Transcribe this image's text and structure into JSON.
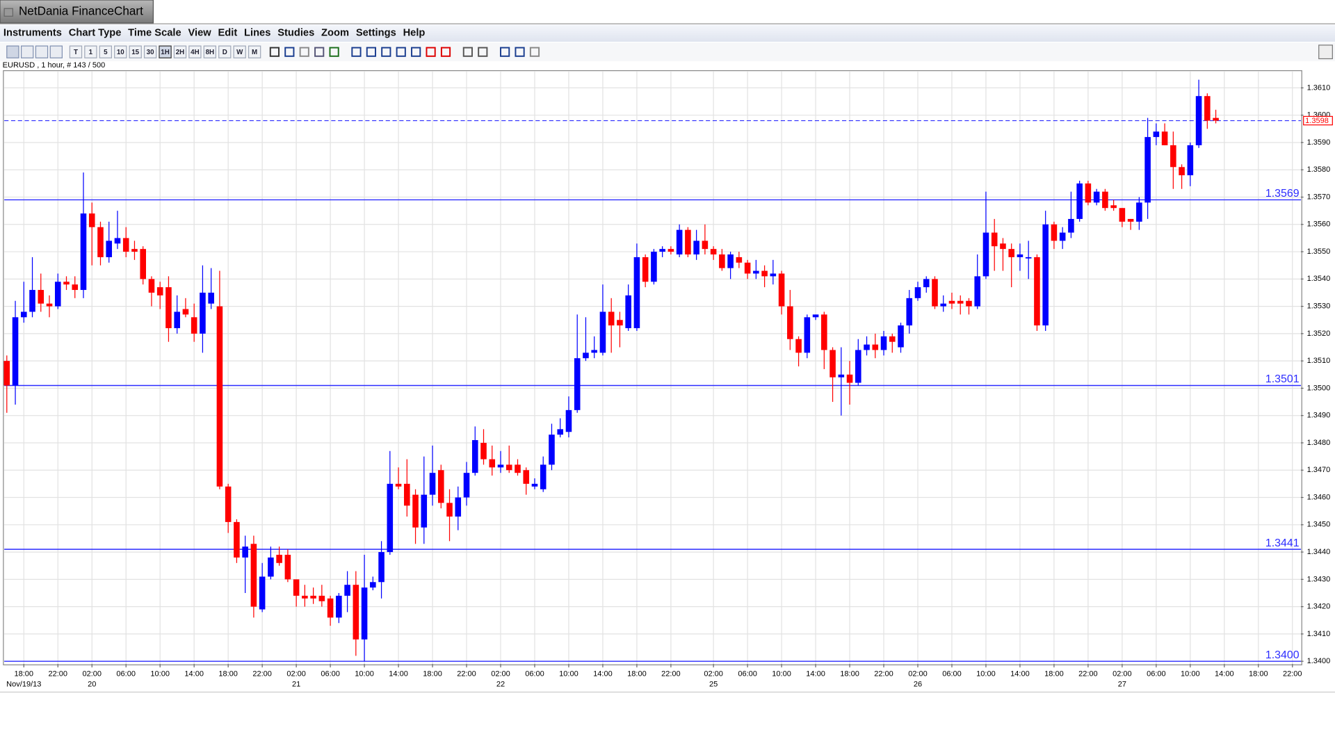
{
  "app_title": "NetDania FinanceChart",
  "menu": [
    "Instruments",
    "Chart Type",
    "Time Scale",
    "View",
    "Edit",
    "Lines",
    "Studies",
    "Zoom",
    "Settings",
    "Help"
  ],
  "toolbar": [
    "T",
    "1",
    "5",
    "10",
    "15",
    "30",
    "1H",
    "2H",
    "4H",
    "8H",
    "D",
    "W",
    "M"
  ],
  "chart_data": {
    "type": "candlestick",
    "subtitle": "EURUSD , 1 hour, # 143 / 500",
    "up_color": "#0000ff",
    "down_color": "#ff0000",
    "level_color": "#2b2bff",
    "grid": true,
    "xlim": [
      -0.3,
      152
    ],
    "ylim": [
      1.3399,
      1.3616
    ],
    "yticks": [
      {
        "value": 1.34,
        "label": "1.3400"
      },
      {
        "value": 1.341,
        "label": "1.3410"
      },
      {
        "value": 1.342,
        "label": "1.3420"
      },
      {
        "value": 1.343,
        "label": "1.3430"
      },
      {
        "value": 1.344,
        "label": "1.3440"
      },
      {
        "value": 1.345,
        "label": "1.3450"
      },
      {
        "value": 1.346,
        "label": "1.3460"
      },
      {
        "value": 1.347,
        "label": "1.3470"
      },
      {
        "value": 1.348,
        "label": "1.3480"
      },
      {
        "value": 1.349,
        "label": "1.3490"
      },
      {
        "value": 1.35,
        "label": "1.3500"
      },
      {
        "value": 1.351,
        "label": "1.3510"
      },
      {
        "value": 1.352,
        "label": "1.3520"
      },
      {
        "value": 1.353,
        "label": "1.3530"
      },
      {
        "value": 1.354,
        "label": "1.3540"
      },
      {
        "value": 1.355,
        "label": "1.3550"
      },
      {
        "value": 1.356,
        "label": "1.3560"
      },
      {
        "value": 1.357,
        "label": "1.3570"
      },
      {
        "value": 1.358,
        "label": "1.3580"
      },
      {
        "value": 1.359,
        "label": "1.3590"
      },
      {
        "value": 1.36,
        "label": "1.3600"
      },
      {
        "value": 1.361,
        "label": "1.3610"
      }
    ],
    "xticks": [
      {
        "value": 2,
        "label": "18:00"
      },
      {
        "value": 6,
        "label": "22:00"
      },
      {
        "value": 10,
        "label": "02:00"
      },
      {
        "value": 14,
        "label": "06:00"
      },
      {
        "value": 18,
        "label": "10:00"
      },
      {
        "value": 22,
        "label": "14:00"
      },
      {
        "value": 26,
        "label": "18:00"
      },
      {
        "value": 30,
        "label": "22:00"
      },
      {
        "value": 34,
        "label": "02:00"
      },
      {
        "value": 38,
        "label": "06:00"
      },
      {
        "value": 42,
        "label": "10:00"
      },
      {
        "value": 46,
        "label": "14:00"
      },
      {
        "value": 50,
        "label": "18:00"
      },
      {
        "value": 54,
        "label": "22:00"
      },
      {
        "value": 58,
        "label": "02:00"
      },
      {
        "value": 62,
        "label": "06:00"
      },
      {
        "value": 66,
        "label": "10:00"
      },
      {
        "value": 70,
        "label": "14:00"
      },
      {
        "value": 74,
        "label": "18:00"
      },
      {
        "value": 78,
        "label": "22:00"
      },
      {
        "value": 83,
        "label": "02:00"
      },
      {
        "value": 87,
        "label": "06:00"
      },
      {
        "value": 91,
        "label": "10:00"
      },
      {
        "value": 95,
        "label": "14:00"
      },
      {
        "value": 99,
        "label": "18:00"
      },
      {
        "value": 103,
        "label": "22:00"
      },
      {
        "value": 107,
        "label": "02:00"
      },
      {
        "value": 111,
        "label": "06:00"
      },
      {
        "value": 115,
        "label": "10:00"
      },
      {
        "value": 119,
        "label": "14:00"
      },
      {
        "value": 123,
        "label": "18:00"
      },
      {
        "value": 127,
        "label": "22:00"
      },
      {
        "value": 131,
        "label": "02:00"
      },
      {
        "value": 135,
        "label": "06:00"
      },
      {
        "value": 139,
        "label": "10:00"
      },
      {
        "value": 143,
        "label": "14:00"
      },
      {
        "value": 147,
        "label": "18:00"
      },
      {
        "value": 151,
        "label": "22:00"
      }
    ],
    "date_ticks": [
      {
        "value": 2,
        "label": "Nov/19/13"
      },
      {
        "value": 10,
        "label": "20"
      },
      {
        "value": 34,
        "label": "21"
      },
      {
        "value": 58,
        "label": "22"
      },
      {
        "value": 83,
        "label": "25"
      },
      {
        "value": 107,
        "label": "26"
      },
      {
        "value": 131,
        "label": "27"
      }
    ],
    "levels": [
      1.3569,
      1.3501,
      1.3441,
      {
        "value": 1.34,
        "label": "1.3400"
      }
    ],
    "last_price": 1.3598,
    "ohlc": [
      [
        1.351,
        1.3512,
        1.3491,
        1.3501
      ],
      [
        1.3501,
        1.3532,
        1.3494,
        1.3526
      ],
      [
        1.3526,
        1.3539,
        1.3524,
        1.3528
      ],
      [
        1.3528,
        1.3548,
        1.3526,
        1.3536
      ],
      [
        1.3536,
        1.3542,
        1.3528,
        1.3531
      ],
      [
        1.3531,
        1.3534,
        1.3526,
        1.353
      ],
      [
        1.353,
        1.3542,
        1.3529,
        1.3539
      ],
      [
        1.3539,
        1.3541,
        1.3536,
        1.3538
      ],
      [
        1.3538,
        1.3541,
        1.3533,
        1.3536
      ],
      [
        1.3536,
        1.3579,
        1.3533,
        1.3564
      ],
      [
        1.3564,
        1.3568,
        1.3545,
        1.3559
      ],
      [
        1.3559,
        1.3561,
        1.3545,
        1.3548
      ],
      [
        1.3548,
        1.3561,
        1.3546,
        1.3554
      ],
      [
        1.3553,
        1.3565,
        1.3551,
        1.3555
      ],
      [
        1.3555,
        1.3559,
        1.3548,
        1.355
      ],
      [
        1.3551,
        1.3554,
        1.3547,
        1.355
      ],
      [
        1.3551,
        1.3552,
        1.3538,
        1.354
      ],
      [
        1.354,
        1.3541,
        1.353,
        1.3535
      ],
      [
        1.3537,
        1.3539,
        1.3529,
        1.3534
      ],
      [
        1.3537,
        1.3541,
        1.3517,
        1.3522
      ],
      [
        1.3522,
        1.3534,
        1.352,
        1.3528
      ],
      [
        1.3529,
        1.3533,
        1.3526,
        1.3527
      ],
      [
        1.3526,
        1.3531,
        1.3517,
        1.352
      ],
      [
        1.352,
        1.3545,
        1.3513,
        1.3535
      ],
      [
        1.3531,
        1.3544,
        1.3529,
        1.3535
      ],
      [
        1.353,
        1.3543,
        1.3463,
        1.3464
      ],
      [
        1.3464,
        1.3465,
        1.3447,
        1.3451
      ],
      [
        1.3451,
        1.3452,
        1.3436,
        1.3438
      ],
      [
        1.3438,
        1.3446,
        1.3425,
        1.3442
      ],
      [
        1.3443,
        1.3446,
        1.3416,
        1.342
      ],
      [
        1.3419,
        1.3436,
        1.3418,
        1.3431
      ],
      [
        1.3431,
        1.3442,
        1.343,
        1.3438
      ],
      [
        1.3439,
        1.3442,
        1.3435,
        1.3436
      ],
      [
        1.3439,
        1.3441,
        1.3429,
        1.343
      ],
      [
        1.343,
        1.343,
        1.342,
        1.3424
      ],
      [
        1.3424,
        1.3428,
        1.342,
        1.3423
      ],
      [
        1.3424,
        1.3427,
        1.3421,
        1.3423
      ],
      [
        1.3424,
        1.3428,
        1.342,
        1.3422
      ],
      [
        1.3423,
        1.3424,
        1.3413,
        1.3416
      ],
      [
        1.3416,
        1.3425,
        1.3414,
        1.3424
      ],
      [
        1.3424,
        1.3433,
        1.3418,
        1.3428
      ],
      [
        1.3428,
        1.3433,
        1.3402,
        1.3408
      ],
      [
        1.3408,
        1.3439,
        1.34,
        1.3427
      ],
      [
        1.3427,
        1.3431,
        1.3426,
        1.3429
      ],
      [
        1.3429,
        1.3444,
        1.3423,
        1.344
      ],
      [
        1.344,
        1.3477,
        1.3439,
        1.3465
      ],
      [
        1.3465,
        1.3471,
        1.3463,
        1.3464
      ],
      [
        1.3465,
        1.3474,
        1.3453,
        1.3457
      ],
      [
        1.3461,
        1.3463,
        1.3443,
        1.3449
      ],
      [
        1.3449,
        1.3475,
        1.3443,
        1.3461
      ],
      [
        1.3461,
        1.3479,
        1.3457,
        1.3469
      ],
      [
        1.347,
        1.3472,
        1.3456,
        1.3458
      ],
      [
        1.3458,
        1.3463,
        1.3444,
        1.3453
      ],
      [
        1.3453,
        1.3464,
        1.3448,
        1.346
      ],
      [
        1.346,
        1.3473,
        1.3457,
        1.3469
      ],
      [
        1.3469,
        1.3486,
        1.3468,
        1.3481
      ],
      [
        1.348,
        1.3485,
        1.3472,
        1.3474
      ],
      [
        1.3474,
        1.3479,
        1.3468,
        1.3471
      ],
      [
        1.3471,
        1.3477,
        1.3469,
        1.3472
      ],
      [
        1.3472,
        1.3479,
        1.3469,
        1.347
      ],
      [
        1.3472,
        1.3474,
        1.3468,
        1.3469
      ],
      [
        1.347,
        1.3471,
        1.3461,
        1.3465
      ],
      [
        1.3464,
        1.3467,
        1.3463,
        1.3465
      ],
      [
        1.3463,
        1.3475,
        1.3462,
        1.3472
      ],
      [
        1.3472,
        1.3487,
        1.347,
        1.3483
      ],
      [
        1.3483,
        1.3489,
        1.3482,
        1.3485
      ],
      [
        1.3484,
        1.3497,
        1.3482,
        1.3492
      ],
      [
        1.3492,
        1.3527,
        1.3491,
        1.3511
      ],
      [
        1.3511,
        1.3526,
        1.351,
        1.3513
      ],
      [
        1.3513,
        1.3519,
        1.3511,
        1.3514
      ],
      [
        1.3513,
        1.3538,
        1.3512,
        1.3528
      ],
      [
        1.3528,
        1.3533,
        1.3513,
        1.3523
      ],
      [
        1.3525,
        1.3528,
        1.3515,
        1.3523
      ],
      [
        1.3522,
        1.3538,
        1.3521,
        1.3534
      ],
      [
        1.3522,
        1.3553,
        1.3521,
        1.3548
      ],
      [
        1.3548,
        1.3549,
        1.3537,
        1.3539
      ],
      [
        1.3539,
        1.3551,
        1.3538,
        1.355
      ],
      [
        1.355,
        1.3552,
        1.3548,
        1.3551
      ],
      [
        1.3551,
        1.3552,
        1.3549,
        1.355
      ],
      [
        1.3549,
        1.356,
        1.3548,
        1.3558
      ],
      [
        1.3558,
        1.3559,
        1.3548,
        1.3549
      ],
      [
        1.3549,
        1.3558,
        1.3547,
        1.3554
      ],
      [
        1.3554,
        1.356,
        1.3549,
        1.3551
      ],
      [
        1.3551,
        1.3552,
        1.3547,
        1.3549
      ],
      [
        1.3549,
        1.3551,
        1.3543,
        1.3544
      ],
      [
        1.3544,
        1.355,
        1.354,
        1.3549
      ],
      [
        1.3548,
        1.355,
        1.3544,
        1.3546
      ],
      [
        1.3546,
        1.3547,
        1.354,
        1.3542
      ],
      [
        1.3542,
        1.3547,
        1.354,
        1.3543
      ],
      [
        1.3543,
        1.3545,
        1.3537,
        1.3541
      ],
      [
        1.3541,
        1.3547,
        1.3538,
        1.3542
      ],
      [
        1.3542,
        1.3543,
        1.3527,
        1.353
      ],
      [
        1.353,
        1.3536,
        1.3514,
        1.3518
      ],
      [
        1.3518,
        1.3519,
        1.3508,
        1.3513
      ],
      [
        1.3513,
        1.3527,
        1.3511,
        1.3526
      ],
      [
        1.3526,
        1.3527,
        1.3525,
        1.3527
      ],
      [
        1.3527,
        1.3528,
        1.3507,
        1.3514
      ],
      [
        1.3514,
        1.3515,
        1.3495,
        1.3504
      ],
      [
        1.3504,
        1.3515,
        1.349,
        1.3505
      ],
      [
        1.3505,
        1.351,
        1.3494,
        1.3502
      ],
      [
        1.3502,
        1.3518,
        1.3501,
        1.3514
      ],
      [
        1.3514,
        1.3519,
        1.3512,
        1.3516
      ],
      [
        1.3516,
        1.352,
        1.3511,
        1.3514
      ],
      [
        1.3514,
        1.3521,
        1.3512,
        1.3519
      ],
      [
        1.3519,
        1.352,
        1.3513,
        1.3517
      ],
      [
        1.3515,
        1.3524,
        1.3513,
        1.3523
      ],
      [
        1.3523,
        1.3536,
        1.352,
        1.3533
      ],
      [
        1.3533,
        1.3539,
        1.3532,
        1.3537
      ],
      [
        1.3537,
        1.3541,
        1.3535,
        1.354
      ],
      [
        1.354,
        1.3541,
        1.3529,
        1.353
      ],
      [
        1.353,
        1.3534,
        1.3528,
        1.3531
      ],
      [
        1.3532,
        1.3535,
        1.3529,
        1.3531
      ],
      [
        1.3532,
        1.3534,
        1.3527,
        1.3531
      ],
      [
        1.3532,
        1.3533,
        1.3527,
        1.353
      ],
      [
        1.353,
        1.3549,
        1.3529,
        1.3541
      ],
      [
        1.3541,
        1.3572,
        1.354,
        1.3557
      ],
      [
        1.3557,
        1.3562,
        1.3543,
        1.3552
      ],
      [
        1.3553,
        1.3555,
        1.3543,
        1.3551
      ],
      [
        1.3551,
        1.3553,
        1.3537,
        1.3548
      ],
      [
        1.3548,
        1.3553,
        1.3543,
        1.3549
      ],
      [
        1.3548,
        1.3554,
        1.354,
        1.3548
      ],
      [
        1.3548,
        1.3549,
        1.3521,
        1.3523
      ],
      [
        1.3523,
        1.3565,
        1.3521,
        1.356
      ],
      [
        1.356,
        1.3561,
        1.3551,
        1.3554
      ],
      [
        1.3554,
        1.3559,
        1.3551,
        1.3557
      ],
      [
        1.3557,
        1.3572,
        1.3555,
        1.3562
      ],
      [
        1.3562,
        1.3576,
        1.3561,
        1.3575
      ],
      [
        1.3575,
        1.3576,
        1.3567,
        1.3568
      ],
      [
        1.3568,
        1.3573,
        1.3567,
        1.3572
      ],
      [
        1.3572,
        1.3573,
        1.3565,
        1.3566
      ],
      [
        1.3567,
        1.3569,
        1.3565,
        1.3566
      ],
      [
        1.3566,
        1.3566,
        1.3559,
        1.3561
      ],
      [
        1.3562,
        1.3562,
        1.3558,
        1.3561
      ],
      [
        1.3561,
        1.357,
        1.3558,
        1.3568
      ],
      [
        1.3568,
        1.3599,
        1.3562,
        1.3592
      ],
      [
        1.3592,
        1.3597,
        1.3589,
        1.3594
      ],
      [
        1.3594,
        1.3597,
        1.3589,
        1.3589
      ],
      [
        1.3589,
        1.3594,
        1.3573,
        1.3581
      ],
      [
        1.3581,
        1.3582,
        1.3573,
        1.3578
      ],
      [
        1.3578,
        1.359,
        1.3574,
        1.3589
      ],
      [
        1.3589,
        1.3613,
        1.3588,
        1.3607
      ],
      [
        1.3607,
        1.3608,
        1.3595,
        1.3598
      ],
      [
        1.3599,
        1.3602,
        1.3597,
        1.3598
      ]
    ]
  }
}
